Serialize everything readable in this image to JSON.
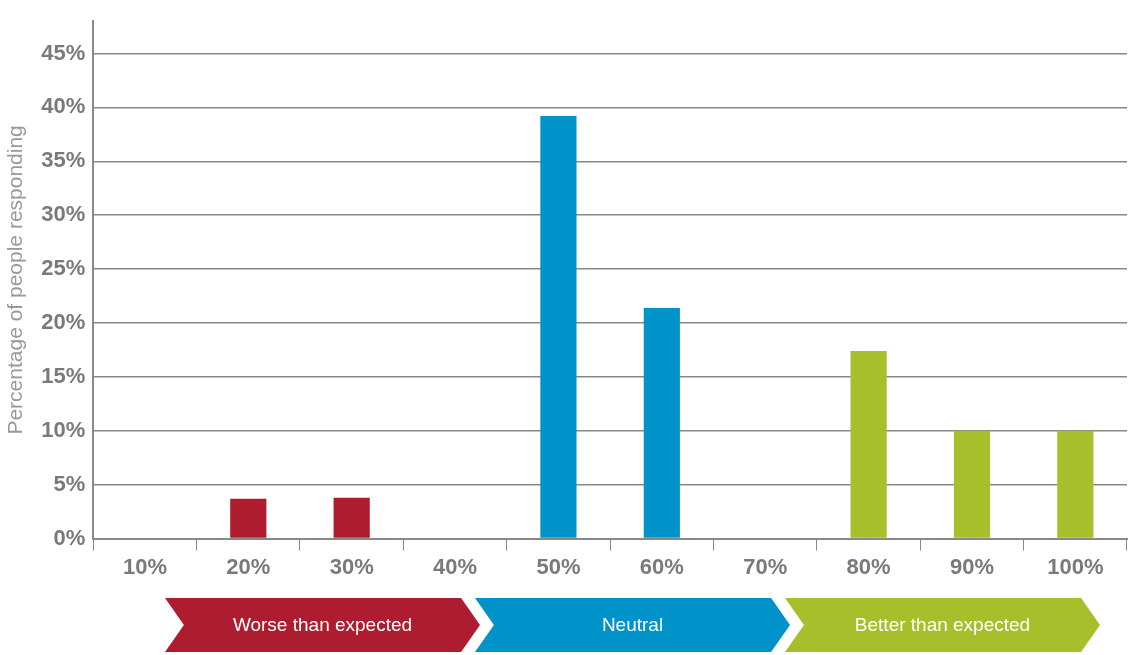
{
  "chart_data": {
    "type": "bar",
    "ylabel": "Percentage of people responding",
    "categories": [
      "10%",
      "20%",
      "30%",
      "40%",
      "50%",
      "60%",
      "70%",
      "80%",
      "90%",
      "100%"
    ],
    "values": [
      0,
      3.7,
      3.8,
      0,
      39.2,
      21.4,
      0,
      17.4,
      10,
      10
    ],
    "colors": [
      "#ae1c2f",
      "#ae1c2f",
      "#ae1c2f",
      "#0093c9",
      "#0093c9",
      "#0093c9",
      "#a8bf2c",
      "#a8bf2c",
      "#a8bf2c",
      "#a8bf2c"
    ],
    "ylim": [
      0,
      48
    ],
    "yticks": [
      {
        "value": 0,
        "label": "0%"
      },
      {
        "value": 5,
        "label": "5%"
      },
      {
        "value": 10,
        "label": "10%"
      },
      {
        "value": 15,
        "label": "15%"
      },
      {
        "value": 20,
        "label": "20%"
      },
      {
        "value": 25,
        "label": "25%"
      },
      {
        "value": 30,
        "label": "30%"
      },
      {
        "value": 35,
        "label": "35%"
      },
      {
        "value": 40,
        "label": "40%"
      },
      {
        "value": 45,
        "label": "45%"
      }
    ],
    "grid": "y",
    "annotations": [
      "Worse than expected",
      "Neutral",
      "Better than expected"
    ]
  }
}
